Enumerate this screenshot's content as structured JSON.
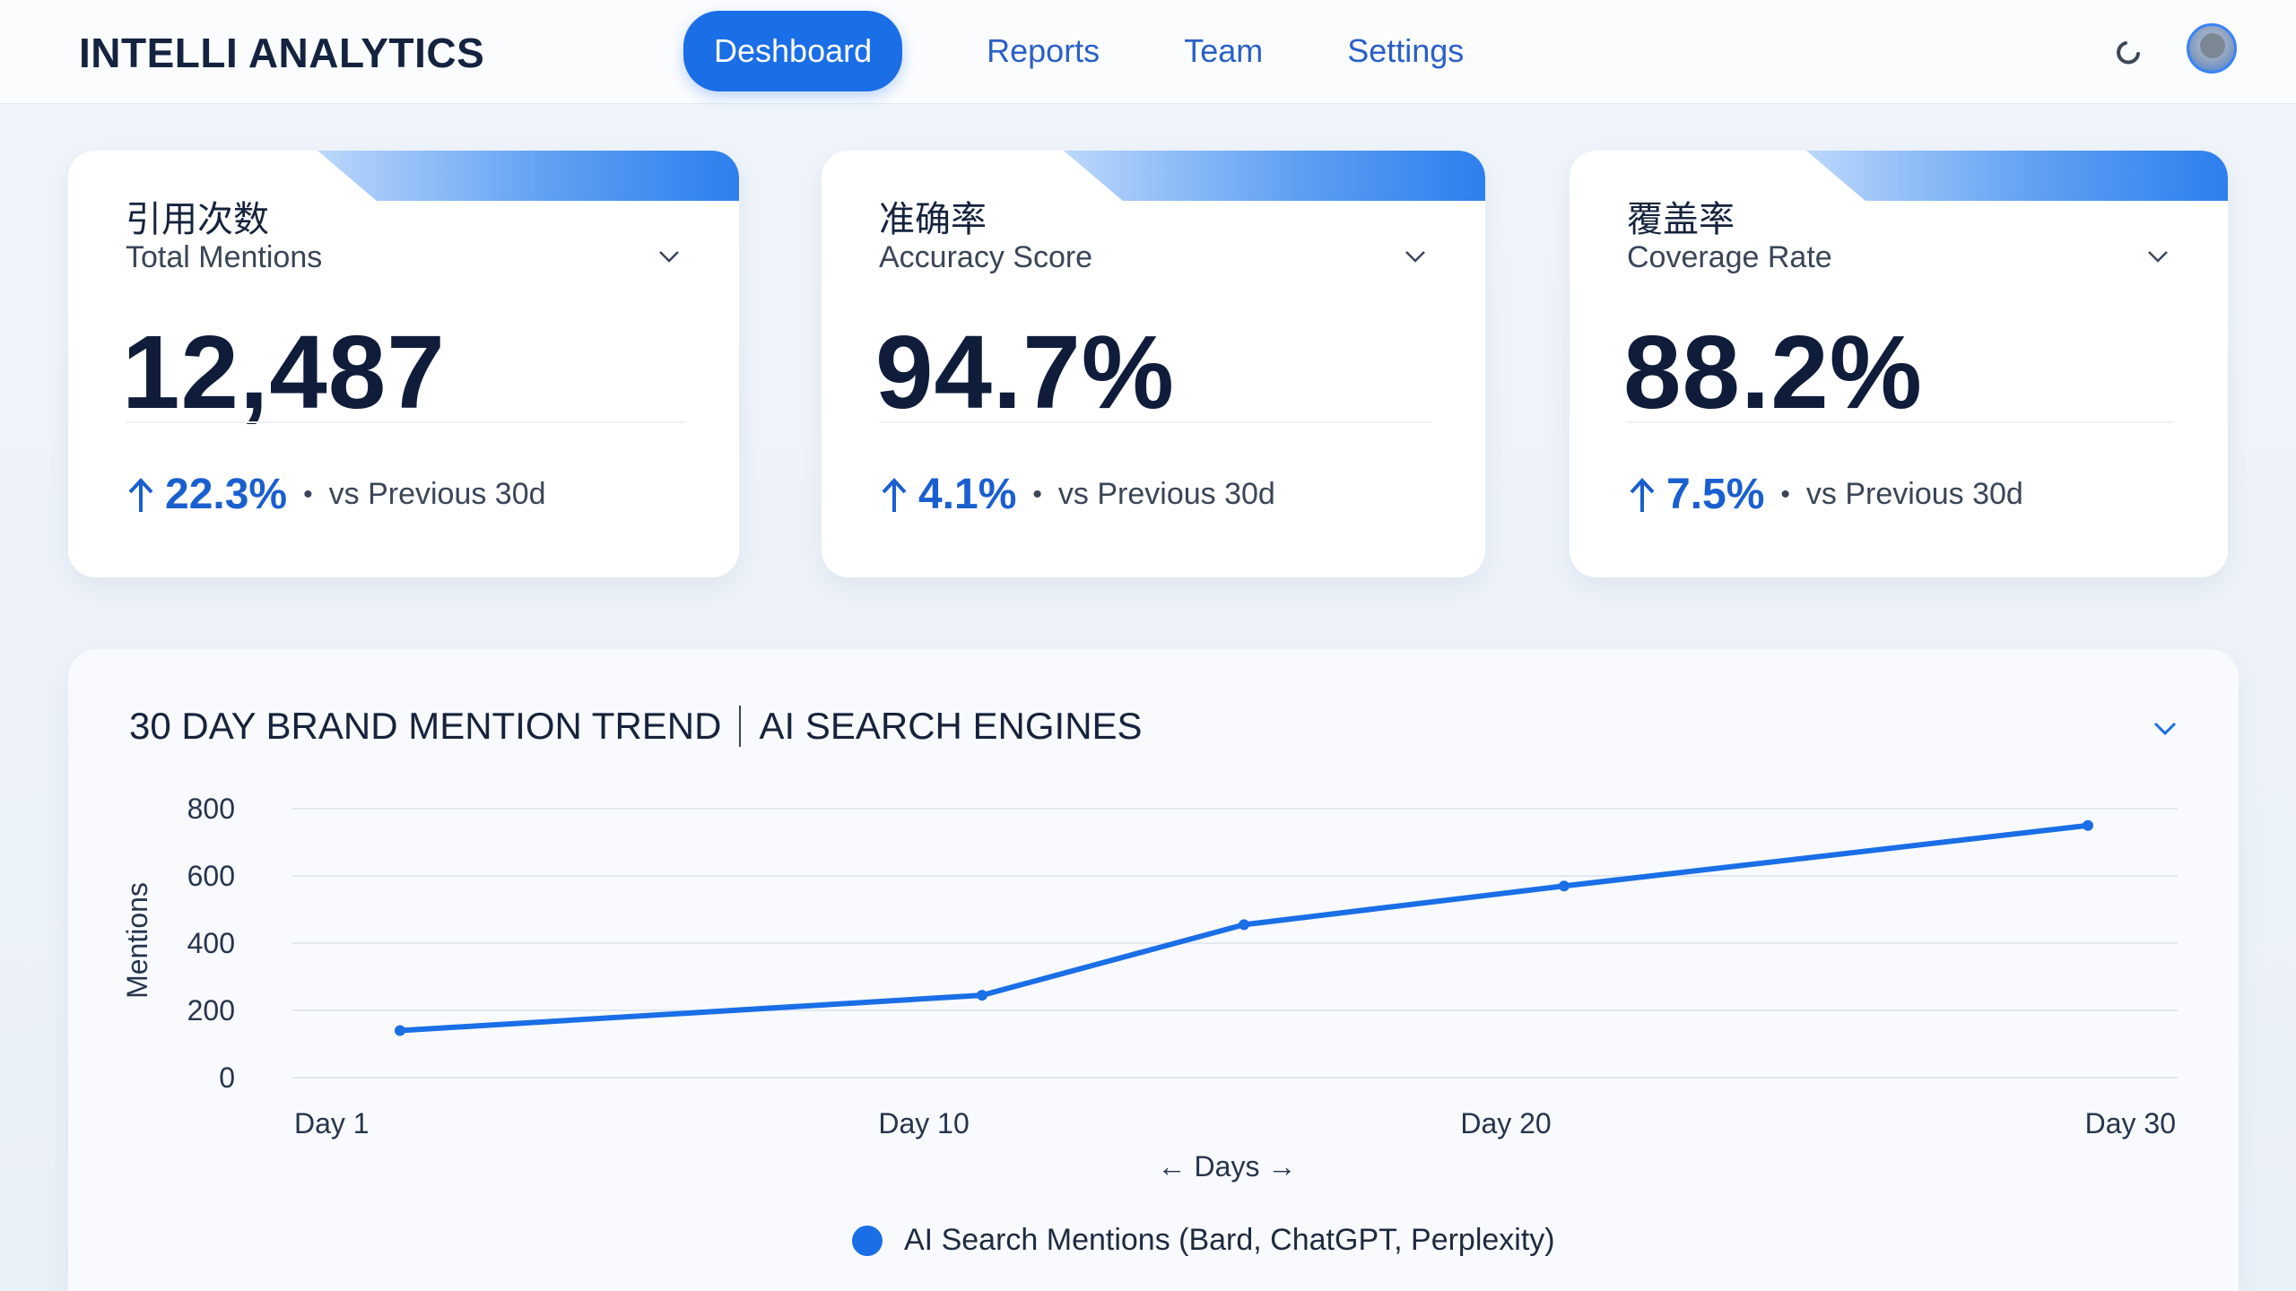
{
  "header": {
    "brand": "INTELLI ANALYTICS",
    "nav": [
      {
        "label": "Deshboard",
        "active": true
      },
      {
        "label": "Reports",
        "active": false
      },
      {
        "label": "Team",
        "active": false
      },
      {
        "label": "Settings",
        "active": false
      }
    ],
    "icons": {
      "refresh": "refresh-icon",
      "avatar": "user-avatar"
    }
  },
  "colors": {
    "accent": "#1a6ee6",
    "delta": "#1a5fcf",
    "text": "#12213f"
  },
  "cards": [
    {
      "title_cn": "引用次数",
      "title_en": "Total Mentions",
      "value": "12,487",
      "delta": "22.3%",
      "delta_label": "vs Previous 30d"
    },
    {
      "title_cn": "准确率",
      "title_en": "Accuracy Score",
      "value": "94.7%",
      "delta": "4.1%",
      "delta_label": "vs Previous 30d"
    },
    {
      "title_cn": "覆盖率",
      "title_en": "Coverage Rate",
      "value": "88.2%",
      "delta": "7.5%",
      "delta_label": "vs Previous 30d"
    }
  ],
  "trend": {
    "title_left": "30 DAY BRAND MENTION TREND",
    "title_right": "AI SEARCH ENGINES",
    "legend": "AI Search Mentions (Bard, ChatGPT, Perplexity)"
  },
  "chart_data": {
    "type": "line",
    "xlabel": "← Days →",
    "ylabel": "Mentions",
    "ylim": [
      0,
      800
    ],
    "yticks": [
      0,
      200,
      400,
      600,
      800
    ],
    "xticks": [
      {
        "day": 1,
        "label": "Day 1"
      },
      {
        "day": 10,
        "label": "Day 10"
      },
      {
        "day": 20,
        "label": "Day 20"
      },
      {
        "day": 30,
        "label": "Day 30"
      }
    ],
    "xlim": [
      1,
      30
    ],
    "grid": true,
    "legend_position": "bottom-center",
    "series": [
      {
        "name": "AI Search Mentions (Bard, ChatGPT, Perplexity)",
        "color": "#1a6ee6",
        "points": [
          {
            "x": 1,
            "y": 140
          },
          {
            "x": 11,
            "y": 245
          },
          {
            "x": 15.5,
            "y": 455
          },
          {
            "x": 21,
            "y": 570
          },
          {
            "x": 30,
            "y": 750
          }
        ]
      }
    ]
  }
}
